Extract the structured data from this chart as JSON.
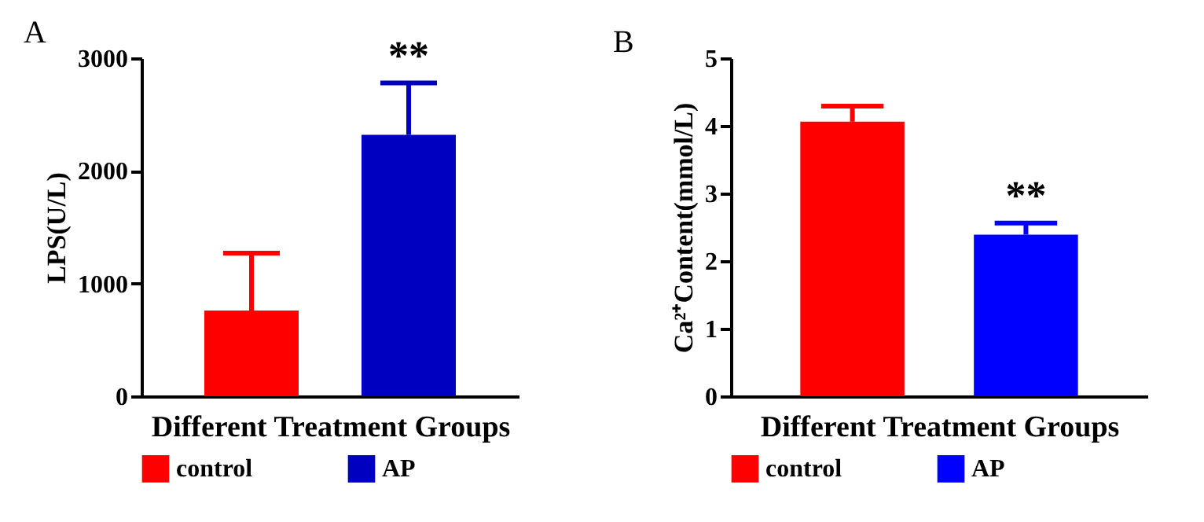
{
  "chart_data": [
    {
      "type": "bar",
      "title": "A",
      "xlabel": "Different Treatment Groups",
      "ylabel": "LPS(U/L)",
      "categories": [
        null,
        null
      ],
      "ylim": [
        0,
        3000
      ],
      "yticks": [
        0,
        1000,
        2000,
        3000
      ],
      "grid": false,
      "legend": "bottom",
      "tick_labels": "y",
      "series": [
        {
          "name": "control",
          "color": "#ff0000",
          "values": [
            760,
            null
          ],
          "errors": [
            [
              760,
              1270
            ],
            null
          ]
        },
        {
          "name": "AP",
          "color": "#0000c0",
          "values": [
            null,
            2320
          ],
          "errors": [
            null,
            [
              2320,
              2780
            ]
          ]
        }
      ],
      "annotations": [
        {
          "text": "**",
          "y": 2780
        }
      ]
    },
    {
      "type": "bar",
      "title": "B",
      "xlabel": "Different Treatment Groups",
      "ylabel": "Ca²⁺Content(mmol/L)",
      "categories": [
        null,
        null
      ],
      "ylim": [
        0,
        5
      ],
      "yticks": [
        0,
        1,
        2,
        3,
        4,
        5
      ],
      "grid": false,
      "legend": "bottom",
      "tick_labels": "y",
      "series": [
        {
          "name": "control",
          "color": "#ff0000",
          "values": [
            4.06,
            null
          ],
          "errors": [
            [
              4.06,
              4.29
            ],
            null
          ]
        },
        {
          "name": "AP",
          "color": "#0000ff",
          "values": [
            null,
            2.39
          ],
          "errors": [
            null,
            [
              2.39,
              2.56
            ]
          ]
        }
      ],
      "annotations": [
        {
          "text": "**",
          "y": 2.56
        }
      ]
    }
  ]
}
